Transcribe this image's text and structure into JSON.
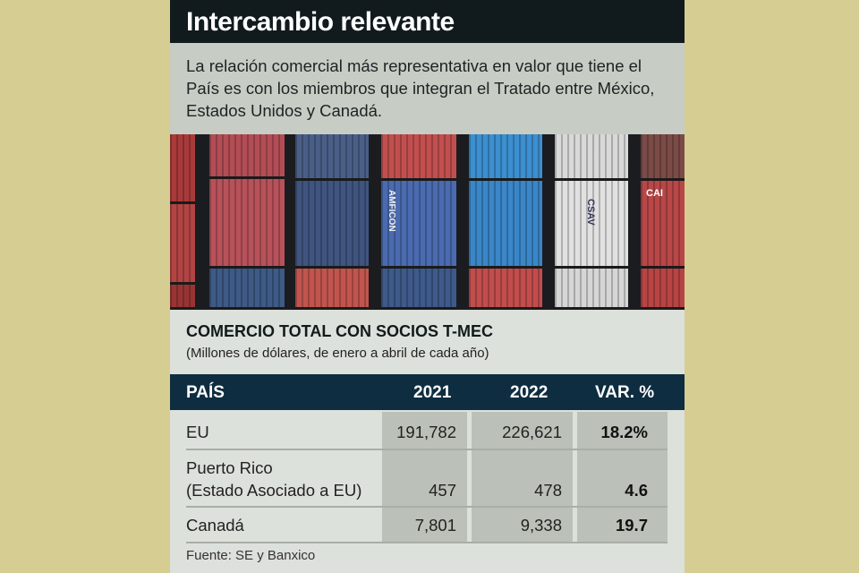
{
  "title": "Intercambio relevante",
  "intro": "La relación comercial más representativa en valor que tiene el País es con los miembros que integran el Tratado entre México, Estados Unidos y Canadá.",
  "photo": {
    "container_labels": [
      "AMFICON",
      "CSAV",
      "CAI"
    ]
  },
  "table_title": "COMERCIO TOTAL CON SOCIOS T-MEC",
  "table_note": "(Millones de dólares, de enero a abril de cada año)",
  "headers": [
    "PAÍS",
    "2021",
    "2022",
    "VAR. %"
  ],
  "rows": [
    {
      "country": "EU",
      "country2": "",
      "y2021": "191,782",
      "y2022": "226,621",
      "var": "18.2%"
    },
    {
      "country": "Puerto Rico",
      "country2": "(Estado Asociado a EU)",
      "y2021": "457",
      "y2022": "478",
      "var": "4.6"
    },
    {
      "country": "Canadá",
      "country2": "",
      "y2021": "7,801",
      "y2022": "9,338",
      "var": "19.7"
    }
  ],
  "source": "Fuente: SE y Banxico",
  "colors": {
    "background": "#d6cd93",
    "title_bar": "#111a1c",
    "table_header": "#0e2d40"
  }
}
